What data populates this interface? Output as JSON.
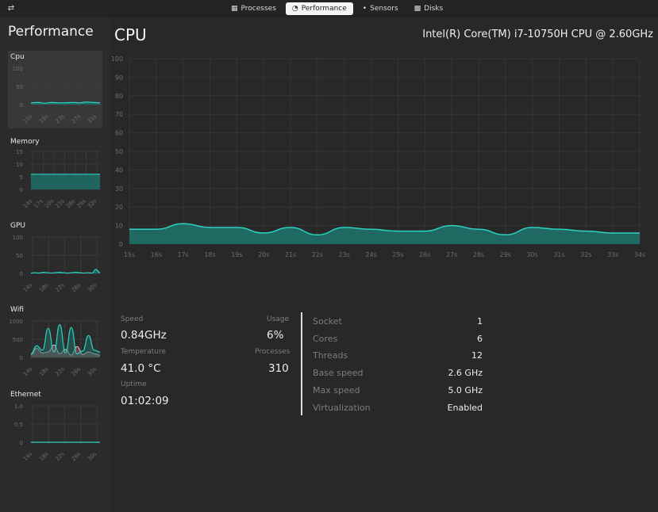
{
  "topbar": {
    "menu_icon": "sliders-icon",
    "tabs": [
      {
        "label": "Processes",
        "icon": "cpu-icon",
        "active": false
      },
      {
        "label": "Performance",
        "icon": "gauge-icon",
        "active": true
      },
      {
        "label": "Sensors",
        "icon": "thermometer-icon",
        "active": false
      },
      {
        "label": "Disks",
        "icon": "disk-icon",
        "active": false
      }
    ]
  },
  "sidebar": {
    "title": "Performance",
    "cards": [
      {
        "label": "Cpu",
        "yticks": [
          "100",
          "50",
          "0"
        ],
        "xticks": [
          "15s",
          "19s",
          "23s",
          "27s",
          "31s"
        ],
        "selected": true,
        "values": [
          5,
          6,
          4,
          6,
          5,
          5,
          6,
          5,
          7,
          6,
          5
        ]
      },
      {
        "label": "Memory",
        "yticks": [
          "15",
          "10",
          "5",
          "0"
        ],
        "xticks": [
          "14s",
          "17s",
          "20s",
          "23s",
          "26s",
          "29s",
          "32s"
        ],
        "selected": false,
        "values": [
          6,
          6,
          6,
          6,
          6,
          6,
          6,
          6,
          6,
          6,
          6,
          6,
          6
        ]
      },
      {
        "label": "GPU",
        "yticks": [
          "100",
          "50",
          "0"
        ],
        "xticks": [
          "14s",
          "18s",
          "22s",
          "26s",
          "30s"
        ],
        "selected": false,
        "values": [
          1,
          2,
          1,
          3,
          2,
          1,
          2,
          3,
          2,
          1,
          2,
          3,
          2,
          1,
          2,
          1,
          11,
          2
        ]
      },
      {
        "label": "Wifi",
        "yticks": [
          "1000",
          "500",
          "0"
        ],
        "xticks": [
          "14s",
          "18s",
          "22s",
          "26s",
          "30s"
        ],
        "selected": false,
        "values": [
          100,
          320,
          200,
          800,
          150,
          900,
          120,
          820,
          100,
          180,
          600,
          200,
          150
        ],
        "values2": [
          80,
          250,
          120,
          150,
          340,
          100,
          220,
          60,
          300,
          80,
          150,
          100,
          60
        ]
      },
      {
        "label": "Ethernet",
        "yticks": [
          "1.0",
          "0.5",
          "0"
        ],
        "xticks": [
          "14s",
          "18s",
          "22s",
          "26s",
          "30s"
        ],
        "selected": false,
        "values": [
          0,
          0,
          0,
          0,
          0,
          0,
          0,
          0,
          0,
          0
        ]
      }
    ]
  },
  "main": {
    "title": "CPU",
    "model": "Intel(R) Core(TM) i7-10750H CPU @ 2.60GHz",
    "stats": {
      "speed_label": "Speed",
      "speed": "0.84GHz",
      "usage_label": "Usage",
      "usage": "6%",
      "temp_label": "Temperature",
      "temp": "41.0 °C",
      "proc_label": "Processes",
      "processes": "310",
      "uptime_label": "Uptime",
      "uptime": "01:02:09"
    },
    "specs": [
      {
        "label": "Socket",
        "value": "1"
      },
      {
        "label": "Cores",
        "value": "6"
      },
      {
        "label": "Threads",
        "value": "12"
      },
      {
        "label": "Base speed",
        "value": "2.6 GHz"
      },
      {
        "label": "Max speed",
        "value": "5.0 GHz"
      },
      {
        "label": "Virtualization",
        "value": "Enabled"
      }
    ]
  },
  "chart_data": {
    "type": "area",
    "x": [
      "15s",
      "16s",
      "17s",
      "18s",
      "19s",
      "20s",
      "21s",
      "22s",
      "23s",
      "24s",
      "25s",
      "26s",
      "27s",
      "28s",
      "29s",
      "30s",
      "31s",
      "32s",
      "33s",
      "34s"
    ],
    "values": [
      8,
      8,
      11,
      9,
      9,
      6,
      9,
      5,
      9,
      8,
      7,
      7,
      10,
      8,
      5,
      9,
      8,
      7,
      6,
      6
    ],
    "ylim": [
      0,
      100
    ],
    "yticks": [
      0,
      10,
      20,
      30,
      40,
      50,
      60,
      70,
      80,
      90,
      100
    ],
    "grid": true,
    "color": "#2bd3c2"
  }
}
